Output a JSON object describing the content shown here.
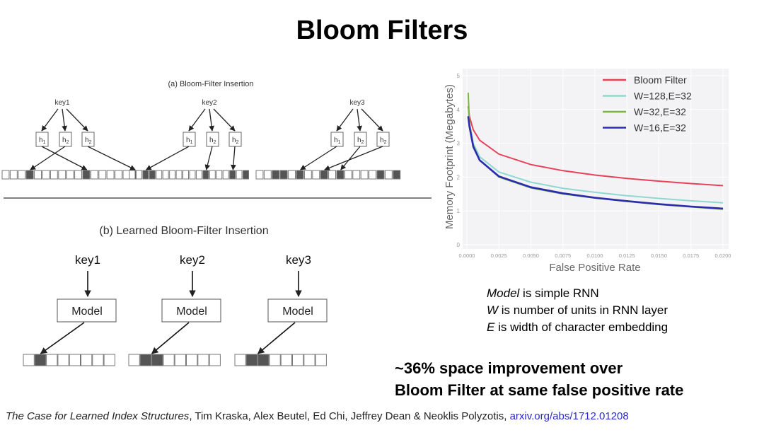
{
  "title": "Bloom Filters",
  "diagram_a": {
    "caption": "(a) Bloom-Filter Insertion",
    "groups": [
      {
        "key": "key1",
        "hashes": [
          "h",
          "h",
          "h"
        ],
        "subs": [
          "1",
          "2",
          "2"
        ],
        "bits": [
          0,
          0,
          0,
          1,
          0,
          0,
          0,
          0,
          0,
          0,
          1,
          0,
          0,
          0,
          0,
          0,
          1
        ],
        "targets": [
          10,
          3,
          16
        ]
      },
      {
        "key": "key2",
        "hashes": [
          "h",
          "h",
          "h"
        ],
        "subs": [
          "1",
          "2",
          "2"
        ],
        "bits": [
          0,
          0,
          1,
          1,
          0,
          0,
          0,
          0,
          0,
          0,
          0,
          1,
          0,
          0,
          0,
          1,
          0,
          1
        ],
        "targets": [
          2,
          11,
          15
        ]
      },
      {
        "key": "key3",
        "hashes": [
          "h",
          "h",
          "h"
        ],
        "subs": [
          "1",
          "2",
          "2"
        ],
        "bits": [
          0,
          0,
          1,
          1,
          0,
          1,
          0,
          0,
          1,
          0,
          1,
          0,
          0,
          0,
          0,
          1,
          0,
          1
        ],
        "targets": [
          5,
          10,
          8
        ]
      }
    ]
  },
  "diagram_b": {
    "caption": "(b) Learned Bloom-Filter Insertion",
    "model_label": "Model",
    "groups": [
      {
        "key": "key1",
        "bits": [
          0,
          1,
          0,
          0,
          0,
          0,
          0,
          0
        ]
      },
      {
        "key": "key2",
        "bits": [
          0,
          1,
          1,
          0,
          0,
          0,
          0,
          0
        ]
      },
      {
        "key": "key3",
        "bits": [
          0,
          1,
          1,
          0,
          0,
          0,
          0,
          0
        ]
      }
    ]
  },
  "chart_data": {
    "type": "line",
    "xlabel": "False Positive Rate",
    "ylabel": "Memory Footprint (Megabytes)",
    "xlim": [
      0,
      0.02
    ],
    "ylim": [
      0,
      5
    ],
    "xticks": [
      "0.0000",
      "0.0025",
      "0.0050",
      "0.0075",
      "0.0100",
      "0.0125",
      "0.0150",
      "0.0175",
      "0.0200"
    ],
    "yticks": [
      "0",
      "1",
      "2",
      "3",
      "4",
      "5"
    ],
    "grid": true,
    "legend": "top-right",
    "x": [
      0.0001,
      0.0002,
      0.0005,
      0.001,
      0.0025,
      0.005,
      0.0075,
      0.01,
      0.0125,
      0.015,
      0.0175,
      0.02
    ],
    "series": [
      {
        "name": "Bloom Filter",
        "color": "#e8415a",
        "values": [
          4.1,
          3.8,
          3.4,
          3.09,
          2.68,
          2.37,
          2.19,
          2.06,
          1.96,
          1.88,
          1.81,
          1.75
        ]
      },
      {
        "name": "W=128,E=32",
        "color": "#8fd8d2",
        "values": [
          4.0,
          3.6,
          3.0,
          2.6,
          2.15,
          1.85,
          1.67,
          1.55,
          1.45,
          1.37,
          1.3,
          1.24
        ]
      },
      {
        "name": "W=32,E=32",
        "color": "#7cb342",
        "values": [
          4.5,
          3.6,
          2.95,
          2.5,
          2.0,
          1.68,
          1.5,
          1.38,
          1.28,
          1.19,
          1.12,
          1.05
        ]
      },
      {
        "name": "W=16,E=32",
        "color": "#2b2bb0",
        "values": [
          3.8,
          3.5,
          2.9,
          2.5,
          2.02,
          1.7,
          1.52,
          1.39,
          1.29,
          1.2,
          1.13,
          1.07
        ]
      }
    ]
  },
  "notes": [
    {
      "em": "Model",
      "rest": " is simple RNN"
    },
    {
      "em": "W",
      "rest": " is number of units in RNN layer"
    },
    {
      "em": "E",
      "rest": " is width of character embedding"
    }
  ],
  "claim": [
    "~36% space improvement over",
    "Bloom Filter at same false positive rate"
  ],
  "footer": {
    "paper": "The Case for Learned Index Structures",
    "authors": ", Tim Kraska, Alex Beutel, Ed Chi, Jeffrey Dean & Neoklis Polyzotis, ",
    "link": "arxiv.org/abs/1712.01208"
  }
}
